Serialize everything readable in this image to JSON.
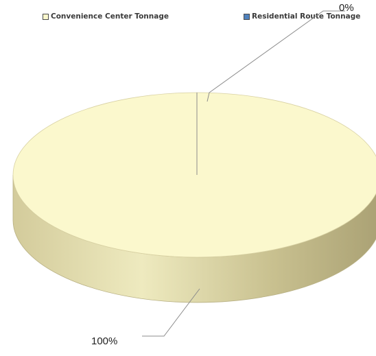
{
  "chart_data": {
    "type": "pie",
    "style": "3d",
    "legend_position": "top",
    "categories": [
      "Convenience Center Tonnage",
      "Residential Route Tonnage"
    ],
    "values": [
      100,
      0
    ],
    "data_labels": [
      "100%",
      "0%"
    ],
    "colors": {
      "slice_top": "#fbf8cd",
      "slice_side_light": "#eeeabf",
      "slice_side_dark": "#b7af81",
      "residential": "#4f81bd",
      "leader_line": "#8c8c8c"
    }
  }
}
